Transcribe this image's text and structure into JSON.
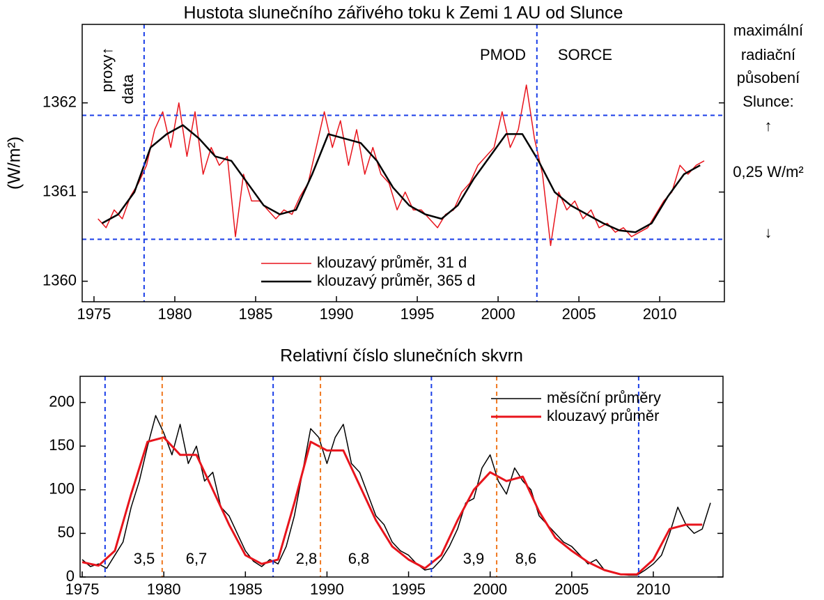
{
  "chart_data": [
    {
      "type": "line",
      "title": "Hustota slunečního zářivého toku k Zemi 1 AU od Slunce",
      "ylabel": "(W/m²)",
      "xlim": [
        1974.27,
        2014.0
      ],
      "ylim": [
        1359.77,
        1362.88
      ],
      "xticks": [
        1975,
        1980,
        1985,
        1990,
        1995,
        2000,
        2005,
        2010
      ],
      "yticks": [
        1360,
        1361,
        1362
      ],
      "legend": "lower center",
      "series": [
        {
          "name": "klouzavý průměr, 31 d",
          "color": "#e8141c",
          "width": 1.5,
          "x": [
            1975.25,
            1975.75,
            1976.25,
            1976.75,
            1977.25,
            1977.75,
            1978.25,
            1978.75,
            1979.25,
            1979.75,
            1980.25,
            1980.75,
            1981.25,
            1981.75,
            1982.25,
            1982.75,
            1983.25,
            1983.75,
            1984.25,
            1984.75,
            1985.25,
            1985.75,
            1986.25,
            1986.75,
            1987.25,
            1987.75,
            1988.25,
            1988.75,
            1989.25,
            1989.75,
            1990.25,
            1990.75,
            1991.25,
            1991.75,
            1992.25,
            1992.75,
            1993.25,
            1993.75,
            1994.25,
            1994.75,
            1995.25,
            1995.75,
            1996.25,
            1996.75,
            1997.25,
            1997.75,
            1998.25,
            1998.75,
            1999.25,
            1999.75,
            2000.25,
            2000.75,
            2001.25,
            2001.75,
            2002.25,
            2002.75,
            2003.25,
            2003.75,
            2004.25,
            2004.75,
            2005.25,
            2005.75,
            2006.25,
            2006.75,
            2007.25,
            2007.75,
            2008.25,
            2008.75,
            2009.25,
            2009.75,
            2010.25,
            2010.75,
            2011.25,
            2011.75,
            2012.25,
            2012.75
          ],
          "values": [
            1360.7,
            1360.6,
            1360.8,
            1360.7,
            1360.95,
            1361.1,
            1361.3,
            1361.7,
            1361.9,
            1361.5,
            1362.0,
            1361.4,
            1361.9,
            1361.2,
            1361.5,
            1361.3,
            1361.4,
            1360.5,
            1361.2,
            1360.9,
            1360.9,
            1360.8,
            1360.7,
            1360.8,
            1360.75,
            1360.95,
            1361.1,
            1361.5,
            1361.9,
            1361.5,
            1361.8,
            1361.3,
            1361.7,
            1361.2,
            1361.5,
            1361.2,
            1361.1,
            1360.8,
            1361.0,
            1360.8,
            1360.8,
            1360.7,
            1360.6,
            1360.75,
            1360.8,
            1361.0,
            1361.1,
            1361.3,
            1361.4,
            1361.5,
            1361.9,
            1361.5,
            1361.7,
            1362.2,
            1361.6,
            1361.2,
            1360.4,
            1361.0,
            1360.8,
            1360.9,
            1360.7,
            1360.8,
            1360.6,
            1360.65,
            1360.55,
            1360.6,
            1360.5,
            1360.55,
            1360.6,
            1360.75,
            1360.9,
            1361.0,
            1361.3,
            1361.2,
            1361.3,
            1361.35
          ]
        },
        {
          "name": "klouzavý průměr, 365 d",
          "color": "#000000",
          "width": 2.5,
          "x": [
            1975.5,
            1976.5,
            1977.5,
            1978.5,
            1979.5,
            1980.5,
            1981.5,
            1982.5,
            1983.5,
            1984.5,
            1985.5,
            1986.5,
            1987.5,
            1988.5,
            1989.5,
            1990.5,
            1991.5,
            1992.5,
            1993.5,
            1994.5,
            1995.5,
            1996.5,
            1997.5,
            1998.5,
            1999.5,
            2000.5,
            2001.5,
            2002.5,
            2003.5,
            2004.5,
            2005.5,
            2006.5,
            2007.5,
            2008.5,
            2009.5,
            2010.5,
            2011.5,
            2012.5
          ],
          "values": [
            1360.65,
            1360.75,
            1361.0,
            1361.5,
            1361.65,
            1361.75,
            1361.6,
            1361.4,
            1361.35,
            1361.1,
            1360.85,
            1360.75,
            1360.8,
            1361.2,
            1361.65,
            1361.6,
            1361.55,
            1361.35,
            1361.05,
            1360.85,
            1360.75,
            1360.7,
            1360.85,
            1361.15,
            1361.4,
            1361.65,
            1361.65,
            1361.35,
            1361.0,
            1360.85,
            1360.75,
            1360.65,
            1360.57,
            1360.55,
            1360.65,
            1360.95,
            1361.2,
            1361.3
          ]
        }
      ],
      "vlines": [
        {
          "color": "#1a3ee8",
          "x": [
            1978.1,
            2002.4
          ]
        }
      ],
      "hlines": [
        {
          "color": "#1a3ee8",
          "y": [
            1361.86,
            1360.47
          ]
        }
      ],
      "annotations": [
        "proxy↑",
        "data",
        "PMOD",
        "SORCE",
        "maximální",
        "radiační",
        "působení",
        "Slunce:",
        "↑",
        "0,25 W/m²",
        "↓"
      ]
    },
    {
      "type": "line",
      "title": "Relativní číslo slunečních skvrn",
      "xlim": [
        1974.87,
        2014.27
      ],
      "ylim": [
        0,
        230
      ],
      "xticks": [
        1975,
        1980,
        1985,
        1990,
        1995,
        2000,
        2005,
        2010
      ],
      "yticks": [
        0,
        50,
        100,
        150,
        200
      ],
      "legend": "upper right",
      "series": [
        {
          "name": "měsíční průměry",
          "color": "#000000",
          "width": 1.5,
          "x": [
            1975.0,
            1975.5,
            1976.0,
            1976.5,
            1977.0,
            1977.5,
            1978.0,
            1978.5,
            1979.0,
            1979.5,
            1980.0,
            1980.5,
            1981.0,
            1981.5,
            1982.0,
            1982.5,
            1983.0,
            1983.5,
            1984.0,
            1984.5,
            1985.0,
            1985.5,
            1986.0,
            1986.5,
            1987.0,
            1987.5,
            1988.0,
            1988.5,
            1989.0,
            1989.5,
            1990.0,
            1990.5,
            1991.0,
            1991.5,
            1992.0,
            1992.5,
            1993.0,
            1993.5,
            1994.0,
            1994.5,
            1995.0,
            1995.5,
            1996.0,
            1996.5,
            1997.0,
            1997.5,
            1998.0,
            1998.5,
            1999.0,
            1999.5,
            2000.0,
            2000.5,
            2001.0,
            2001.5,
            2002.0,
            2002.5,
            2003.0,
            2003.5,
            2004.0,
            2004.5,
            2005.0,
            2005.5,
            2006.0,
            2006.5,
            2007.0,
            2007.5,
            2008.0,
            2008.5,
            2009.0,
            2009.5,
            2010.0,
            2010.5,
            2011.0,
            2011.5,
            2012.0,
            2012.5,
            2013.0,
            2013.5
          ],
          "values": [
            20,
            12,
            15,
            10,
            25,
            40,
            80,
            110,
            150,
            185,
            165,
            140,
            175,
            130,
            150,
            110,
            120,
            80,
            70,
            50,
            30,
            18,
            12,
            20,
            15,
            35,
            70,
            120,
            170,
            160,
            130,
            160,
            175,
            130,
            120,
            95,
            70,
            60,
            40,
            30,
            25,
            15,
            8,
            10,
            20,
            35,
            55,
            85,
            90,
            125,
            140,
            110,
            95,
            125,
            110,
            100,
            70,
            60,
            50,
            40,
            35,
            25,
            15,
            20,
            8,
            5,
            3,
            2,
            2,
            8,
            15,
            25,
            50,
            80,
            60,
            50,
            55,
            85
          ]
        },
        {
          "name": "klouzavý průměr",
          "color": "#e8141c",
          "width": 3,
          "x": [
            1975,
            1976,
            1977,
            1978,
            1979,
            1980,
            1981,
            1982,
            1983,
            1984,
            1985,
            1986,
            1987,
            1988,
            1989,
            1990,
            1991,
            1992,
            1993,
            1994,
            1995,
            1996,
            1997,
            1998,
            1999,
            2000,
            2001,
            2002,
            2003,
            2004,
            2005,
            2006,
            2007,
            2008,
            2009,
            2010,
            2011,
            2012,
            2013
          ],
          "values": [
            17,
            13,
            30,
            95,
            155,
            160,
            140,
            140,
            100,
            60,
            25,
            15,
            20,
            85,
            155,
            145,
            145,
            105,
            65,
            35,
            20,
            10,
            25,
            65,
            100,
            120,
            110,
            115,
            75,
            45,
            30,
            17,
            8,
            3,
            3,
            20,
            55,
            60,
            60
          ]
        }
      ],
      "vlines": [
        {
          "color": "#1a3ee8",
          "x": [
            1976.4,
            1986.7,
            1996.4,
            2009.1
          ]
        },
        {
          "color": "#f07820",
          "x": [
            1979.9,
            1989.6,
            2000.4
          ]
        }
      ],
      "hlines": [],
      "annotations": [
        "3,5",
        "6,7",
        "2,8",
        "6,8",
        "3,9",
        "8,6"
      ]
    }
  ]
}
